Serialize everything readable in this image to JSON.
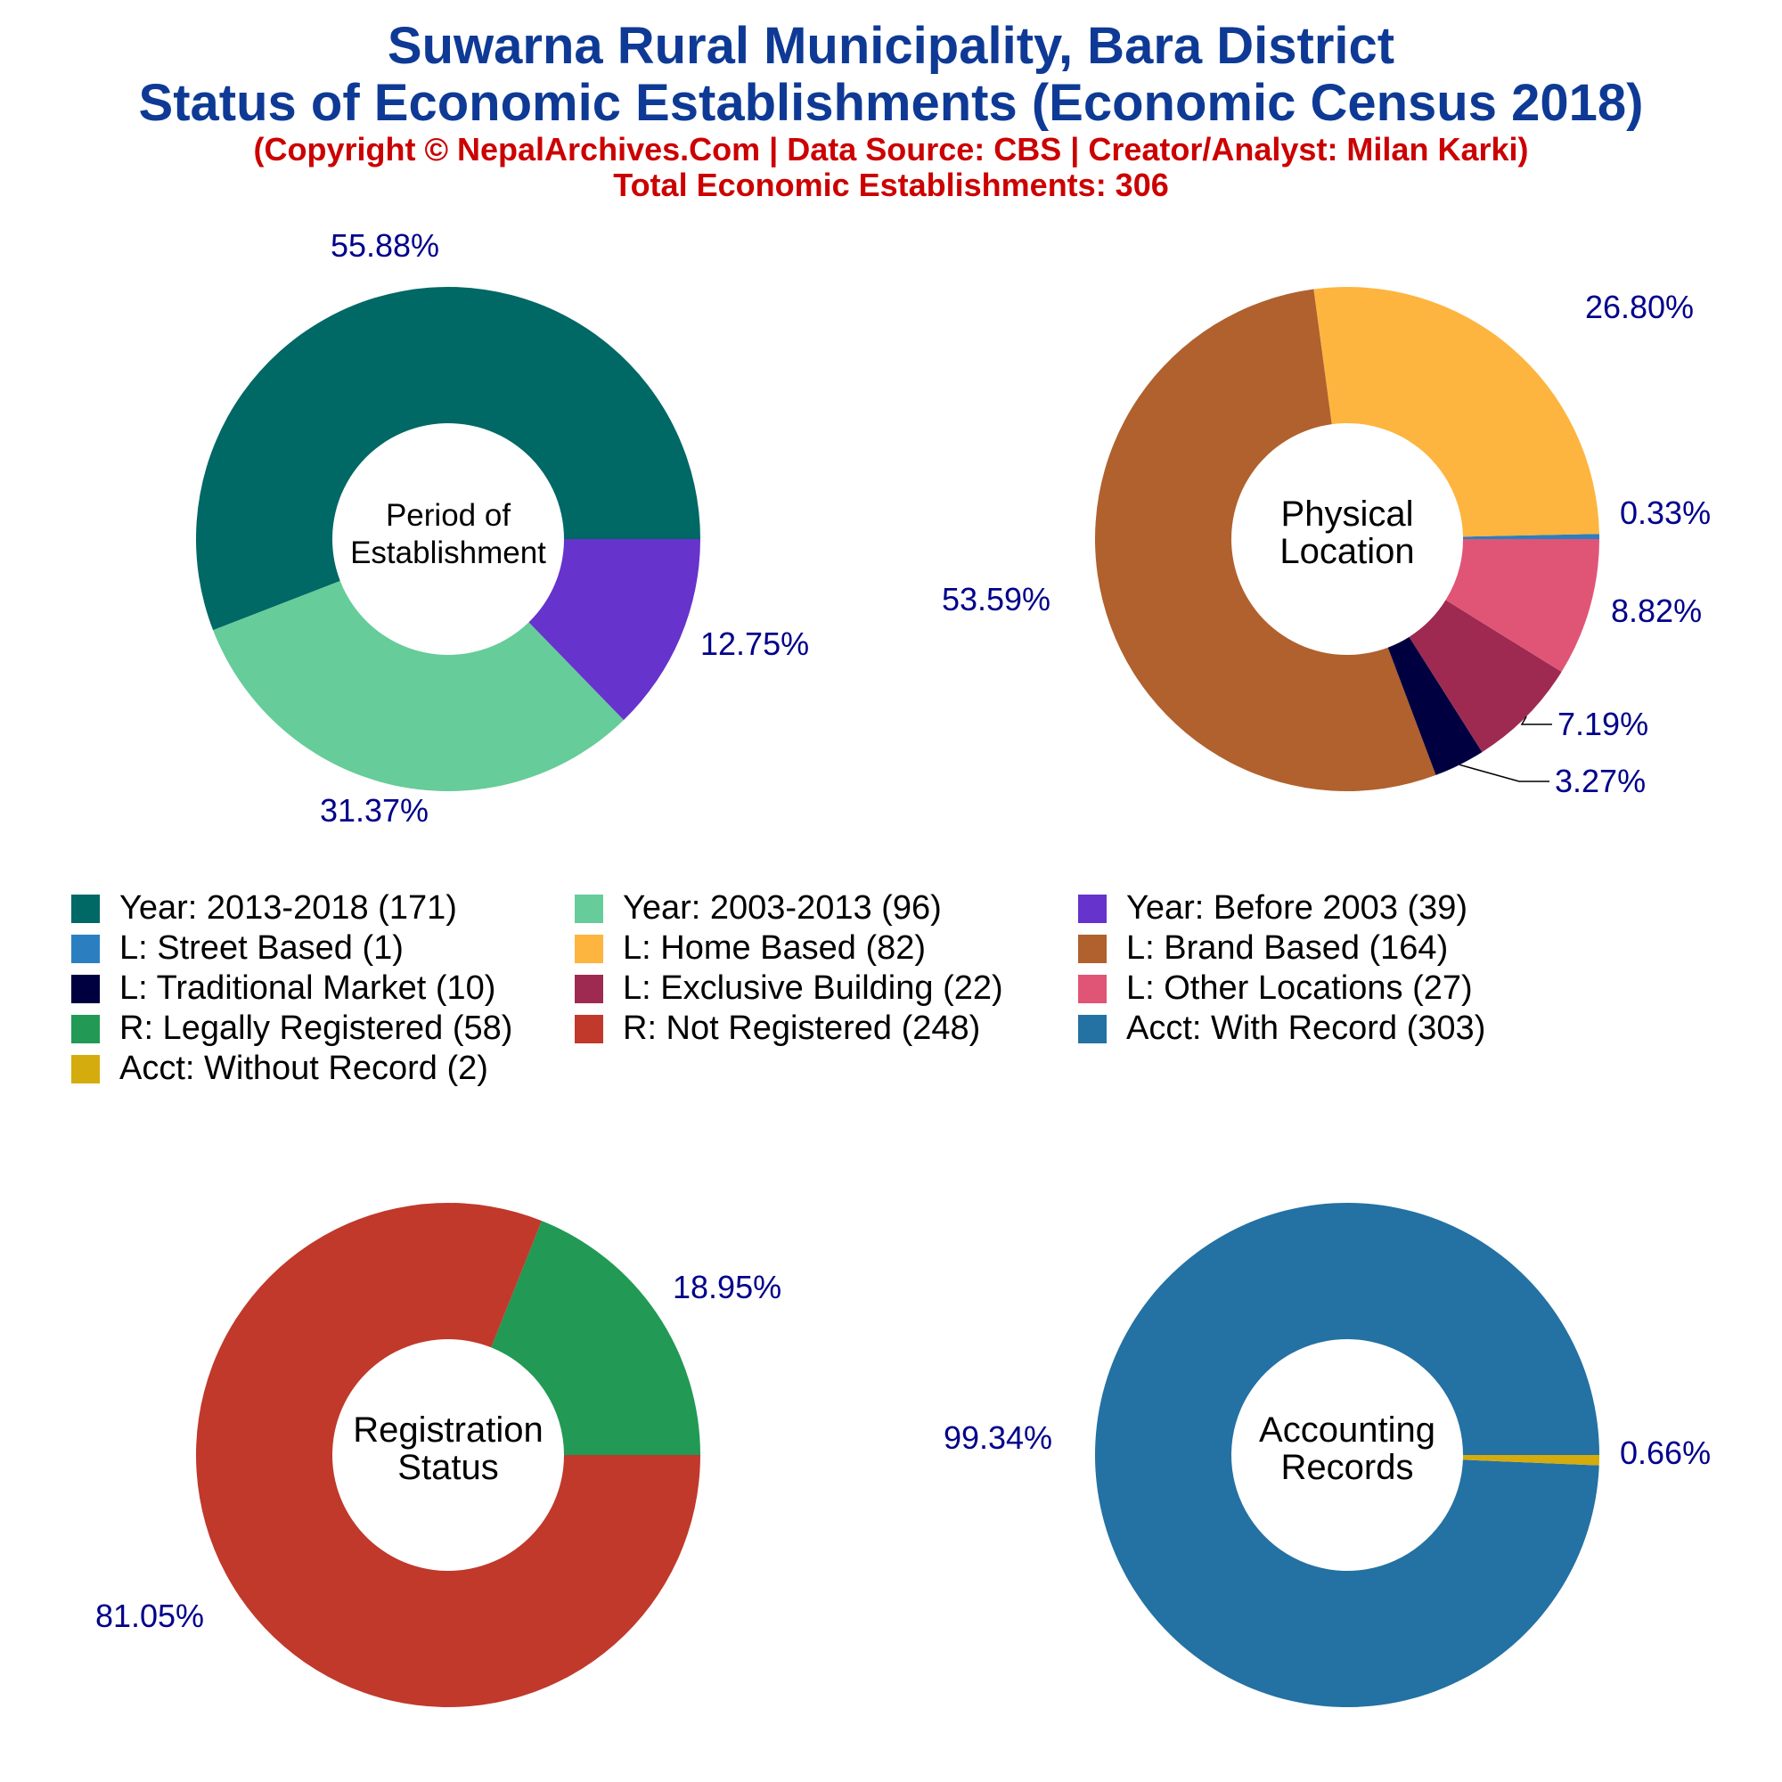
{
  "header": {
    "title_line1": "Suwarna Rural Municipality, Bara District",
    "title_line2": "Status of Economic Establishments (Economic Census 2018)",
    "copyright": "(Copyright © NepalArchives.Com | Data Source: CBS | Creator/Analyst: Milan Karki)",
    "total": "Total Economic Establishments: 306"
  },
  "colors": {
    "title": "#0e3a96",
    "subtitle": "#cc0000",
    "percent_label": "#00008b"
  },
  "chart_data": [
    {
      "type": "pie",
      "center_label": [
        "Period of",
        "Establishment"
      ],
      "categories": [
        "Year: 2013-2018",
        "Year: 2003-2013",
        "Year: Before 2003"
      ],
      "values": [
        171,
        96,
        39
      ],
      "percent_labels": [
        "55.88%",
        "31.37%",
        "12.75%"
      ],
      "colors": [
        "#006865",
        "#66cc99",
        "#6633cc"
      ]
    },
    {
      "type": "pie",
      "center_label": [
        "Physical",
        "Location"
      ],
      "categories": [
        "L: Street Based",
        "L: Home Based",
        "L: Brand Based",
        "L: Traditional Market",
        "L: Exclusive Building",
        "L: Other Locations"
      ],
      "values": [
        1,
        82,
        164,
        10,
        22,
        27
      ],
      "percent_labels": [
        "0.33%",
        "26.80%",
        "53.59%",
        "3.27%",
        "7.19%",
        "8.82%"
      ],
      "colors": [
        "#2b7fc0",
        "#fdb53f",
        "#b0612d",
        "#000040",
        "#9e2a52",
        "#e05575"
      ]
    },
    {
      "type": "pie",
      "center_label": [
        "Registration",
        "Status"
      ],
      "categories": [
        "R: Legally Registered",
        "R: Not Registered"
      ],
      "values": [
        58,
        248
      ],
      "percent_labels": [
        "18.95%",
        "81.05%"
      ],
      "colors": [
        "#229954",
        "#c0392b"
      ]
    },
    {
      "type": "pie",
      "center_label": [
        "Accounting",
        "Records"
      ],
      "categories": [
        "Acct: With Record",
        "Acct: Without Record"
      ],
      "values": [
        303,
        2
      ],
      "percent_labels": [
        "99.34%",
        "0.66%"
      ],
      "colors": [
        "#2471a3",
        "#d4ac0d"
      ]
    }
  ],
  "legend": [
    {
      "label": "Year: 2013-2018 (171)",
      "color": "#006865"
    },
    {
      "label": "Year: 2003-2013 (96)",
      "color": "#66cc99"
    },
    {
      "label": "Year: Before 2003 (39)",
      "color": "#6633cc"
    },
    {
      "label": "L: Street Based (1)",
      "color": "#2b7fc0"
    },
    {
      "label": "L: Home Based (82)",
      "color": "#fdb53f"
    },
    {
      "label": "L: Brand Based (164)",
      "color": "#b0612d"
    },
    {
      "label": "L: Traditional Market (10)",
      "color": "#000040"
    },
    {
      "label": "L: Exclusive Building (22)",
      "color": "#9e2a52"
    },
    {
      "label": "L: Other Locations (27)",
      "color": "#e05575"
    },
    {
      "label": "R: Legally Registered (58)",
      "color": "#229954"
    },
    {
      "label": "R: Not Registered (248)",
      "color": "#c0392b"
    },
    {
      "label": "Acct: With Record (303)",
      "color": "#2471a3"
    },
    {
      "label": "Acct: Without Record (2)",
      "color": "#d4ac0d"
    }
  ]
}
